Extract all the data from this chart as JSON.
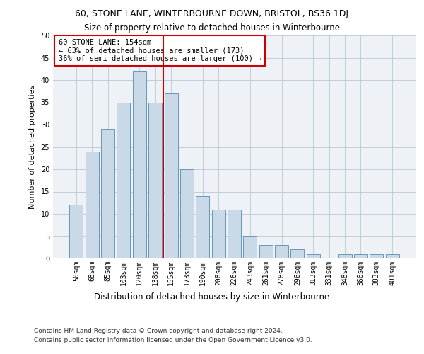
{
  "title1": "60, STONE LANE, WINTERBOURNE DOWN, BRISTOL, BS36 1DJ",
  "title2": "Size of property relative to detached houses in Winterbourne",
  "xlabel": "Distribution of detached houses by size in Winterbourne",
  "ylabel": "Number of detached properties",
  "categories": [
    "50sqm",
    "68sqm",
    "85sqm",
    "103sqm",
    "120sqm",
    "138sqm",
    "155sqm",
    "173sqm",
    "190sqm",
    "208sqm",
    "226sqm",
    "243sqm",
    "261sqm",
    "278sqm",
    "296sqm",
    "313sqm",
    "331sqm",
    "348sqm",
    "366sqm",
    "383sqm",
    "401sqm"
  ],
  "values": [
    12,
    24,
    29,
    35,
    42,
    35,
    37,
    20,
    14,
    11,
    11,
    5,
    3,
    3,
    2,
    1,
    0,
    1,
    1,
    1,
    1
  ],
  "bar_color": "#c9d9e8",
  "bar_edge_color": "#6699bb",
  "vline_color": "#cc0000",
  "annotation_text": "60 STONE LANE: 154sqm\n← 63% of detached houses are smaller (173)\n36% of semi-detached houses are larger (100) →",
  "annotation_box_color": "#ffffff",
  "annotation_box_edge": "#cc0000",
  "footer1": "Contains HM Land Registry data © Crown copyright and database right 2024.",
  "footer2": "Contains public sector information licensed under the Open Government Licence v3.0.",
  "background_color": "#eef2f7",
  "ylim": [
    0,
    50
  ],
  "yticks": [
    0,
    5,
    10,
    15,
    20,
    25,
    30,
    35,
    40,
    45,
    50
  ],
  "title1_fontsize": 9,
  "title2_fontsize": 8.5,
  "xlabel_fontsize": 8.5,
  "ylabel_fontsize": 8,
  "tick_fontsize": 7,
  "footer_fontsize": 6.5,
  "annotation_fontsize": 7.5
}
